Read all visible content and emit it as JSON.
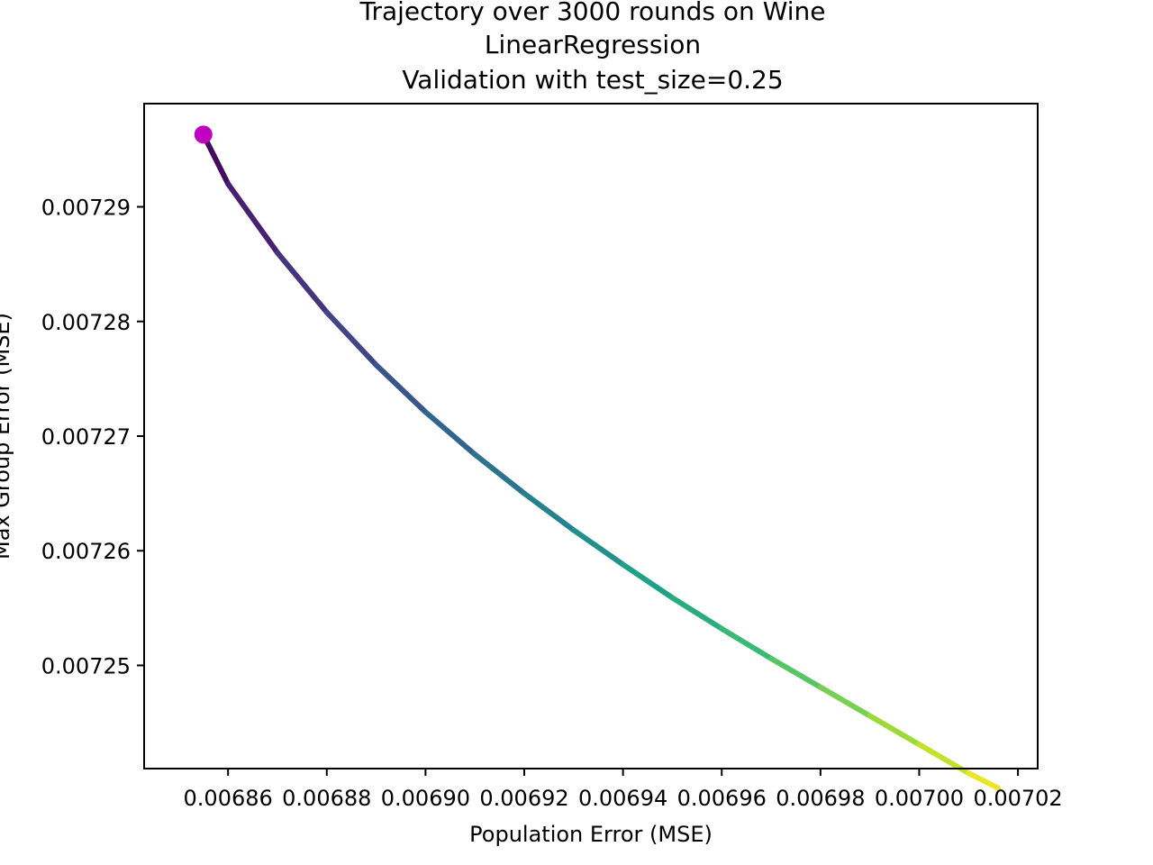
{
  "chart_data": {
    "type": "line",
    "title": "Trajectory over 3000 rounds on Wine\nLinearRegression\nValidation with test_size=0.25",
    "title_lines": [
      "Trajectory over 3000 rounds on Wine",
      "LinearRegression",
      "Validation with test_size=0.25"
    ],
    "xlabel": "Population Error (MSE)",
    "ylabel": "Max Group Error (MSE)",
    "xlim": [
      0.006843,
      0.007024
    ],
    "ylim": [
      0.007241,
      0.007299
    ],
    "xticks": [
      0.00686,
      0.00688,
      0.0069,
      0.00692,
      0.00694,
      0.00696,
      0.00698,
      0.007,
      0.00702
    ],
    "xtick_labels": [
      "0.00686",
      "0.00688",
      "0.00690",
      "0.00692",
      "0.00694",
      "0.00696",
      "0.00698",
      "0.00700",
      "0.00702"
    ],
    "yticks": [
      0.00725,
      0.00726,
      0.00727,
      0.00728,
      0.00729
    ],
    "ytick_labels": [
      "0.00725",
      "0.00726",
      "0.00727",
      "0.00728",
      "0.00729"
    ],
    "grid": false,
    "colormap": "viridis",
    "start_marker_color": "#bf00bf",
    "series": [
      {
        "x": [
          0.006855,
          0.00686,
          0.00687,
          0.00688,
          0.00689,
          0.0069,
          0.00691,
          0.00692,
          0.00693,
          0.00694,
          0.00695,
          0.00696,
          0.00697,
          0.00698,
          0.00699,
          0.007,
          0.00701,
          0.007016
        ],
        "y": [
          0.0072963,
          0.007292,
          0.007286,
          0.0072808,
          0.0072762,
          0.0072721,
          0.0072684,
          0.007265,
          0.0072618,
          0.0072588,
          0.0072559,
          0.0072532,
          0.0072506,
          0.0072481,
          0.0072456,
          0.0072431,
          0.0072406,
          0.0072393
        ]
      }
    ],
    "start_point": {
      "x": 0.006855,
      "y": 0.0072963
    }
  }
}
